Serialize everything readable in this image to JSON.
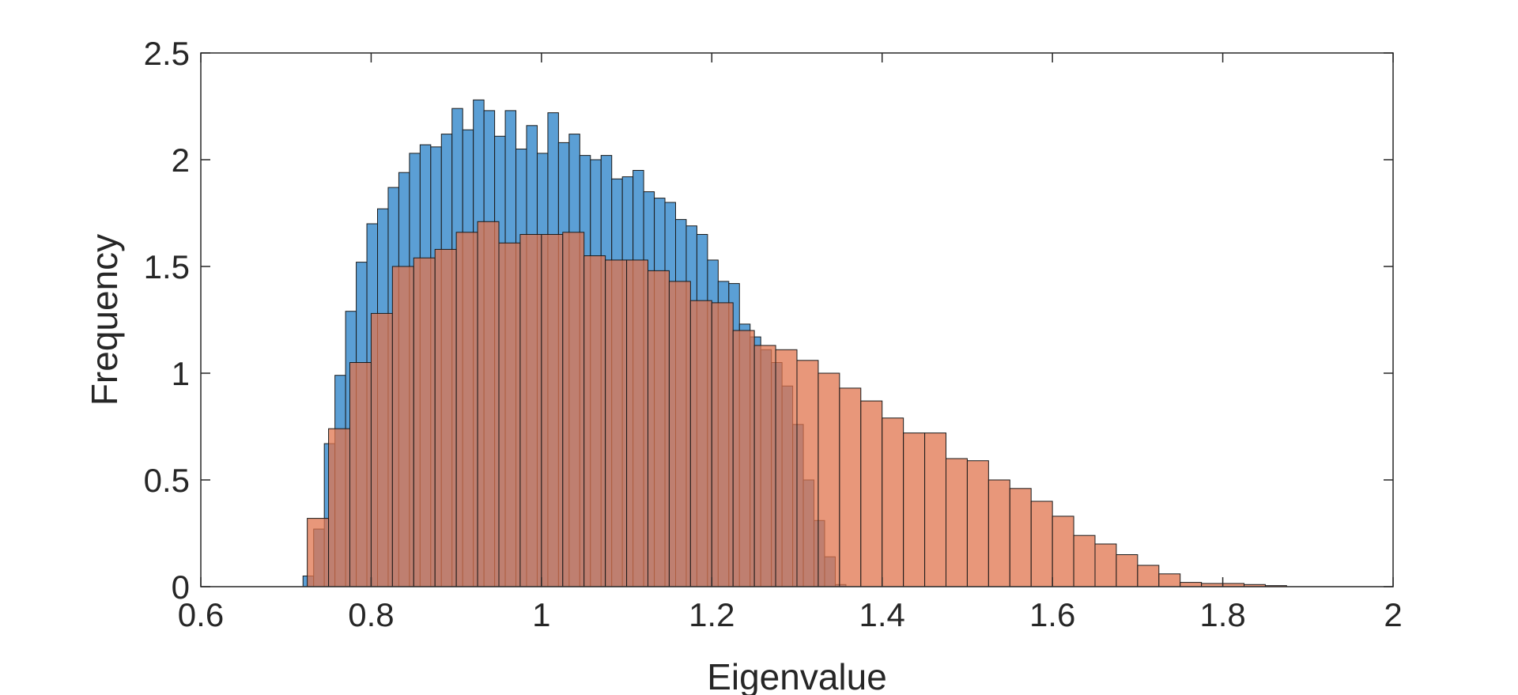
{
  "chart_data": {
    "type": "bar",
    "title": "",
    "xlabel": "Eigenvalue",
    "ylabel": "Frequency",
    "xlim": [
      0.6,
      2
    ],
    "ylim": [
      0,
      2.5
    ],
    "xticks": [
      "0.6",
      "0.8",
      "1",
      "1.2",
      "1.4",
      "1.6",
      "1.8",
      "2"
    ],
    "yticks": [
      "0",
      "0.5",
      "1",
      "1.5",
      "2",
      "2.5"
    ],
    "grid": false,
    "legend": "none",
    "series": [
      {
        "color": "#5b9fd5",
        "bin_width": 0.0125,
        "bin_start": 0.72,
        "values": [
          0.05,
          0.27,
          0.67,
          0.99,
          1.29,
          1.52,
          1.7,
          1.77,
          1.87,
          1.94,
          2.03,
          2.07,
          2.06,
          2.12,
          2.24,
          2.14,
          2.28,
          2.23,
          2.11,
          2.23,
          2.05,
          2.16,
          2.03,
          2.22,
          2.08,
          2.12,
          2.02,
          2.0,
          2.02,
          1.91,
          1.92,
          1.95,
          1.85,
          1.82,
          1.8,
          1.72,
          1.69,
          1.65,
          1.53,
          1.43,
          1.42,
          1.23,
          1.17,
          1.11,
          1.05,
          0.94,
          0.76,
          0.5,
          0.31,
          0.14,
          0.01
        ]
      },
      {
        "color": "#e0744e",
        "bin_width": 0.025,
        "bin_start": 0.725,
        "values": [
          0.32,
          0.74,
          1.05,
          1.28,
          1.5,
          1.54,
          1.58,
          1.66,
          1.71,
          1.61,
          1.65,
          1.65,
          1.66,
          1.55,
          1.53,
          1.53,
          1.48,
          1.43,
          1.34,
          1.33,
          1.2,
          1.13,
          1.11,
          1.06,
          1.0,
          0.93,
          0.87,
          0.79,
          0.72,
          0.72,
          0.6,
          0.59,
          0.5,
          0.46,
          0.4,
          0.33,
          0.24,
          0.2,
          0.15,
          0.1,
          0.06,
          0.02,
          0.015,
          0.015,
          0.01,
          0.005,
          0.0,
          0.0
        ]
      }
    ]
  }
}
